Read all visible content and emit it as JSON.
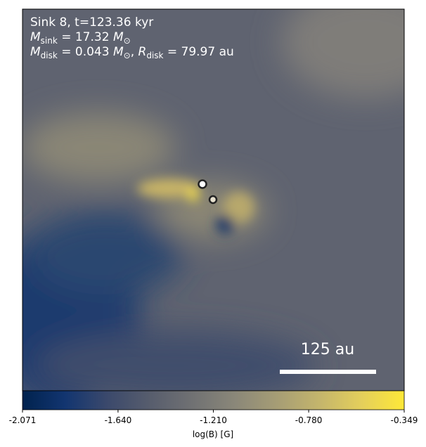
{
  "chart_data": {
    "type": "image",
    "annotations": [
      [
        {
          "text": "Sink 8, t=123.36 kyr",
          "style": "normal"
        }
      ],
      [
        {
          "text": "M",
          "style": "italic"
        },
        {
          "text": "sink",
          "style": "sub"
        },
        {
          "text": " = 17.32 ",
          "style": "normal"
        },
        {
          "text": "M",
          "style": "italic"
        },
        {
          "text": "⊙",
          "style": "sub"
        }
      ],
      [
        {
          "text": "M",
          "style": "italic"
        },
        {
          "text": "disk",
          "style": "sub"
        },
        {
          "text": " = 0.043 ",
          "style": "normal"
        },
        {
          "text": "M",
          "style": "italic"
        },
        {
          "text": "⊙",
          "style": "sub"
        },
        {
          "text": ", ",
          "style": "normal"
        },
        {
          "text": "R",
          "style": "italic"
        },
        {
          "text": "disk",
          "style": "sub"
        },
        {
          "text": " = 79.97 au",
          "style": "normal"
        }
      ]
    ],
    "scale_bar_label": "125 au",
    "colorbar": {
      "label": "log(B) [G]",
      "xlim": [
        -2.071,
        -0.349
      ],
      "xticks": [
        -2.071,
        {
          "value": -1.64,
          "label": "-1.640"
        },
        {
          "value": -1.21,
          "label": "-1.210"
        },
        {
          "value": -0.78,
          "label": "-0.780"
        },
        -0.349
      ],
      "colors": [
        "#00224e",
        "#123570",
        "#3b496c",
        "#575d6d",
        "#707173",
        "#8a8779",
        "#a69d75",
        "#c4b56c",
        "#e4cf5b",
        "#fee838"
      ]
    }
  }
}
